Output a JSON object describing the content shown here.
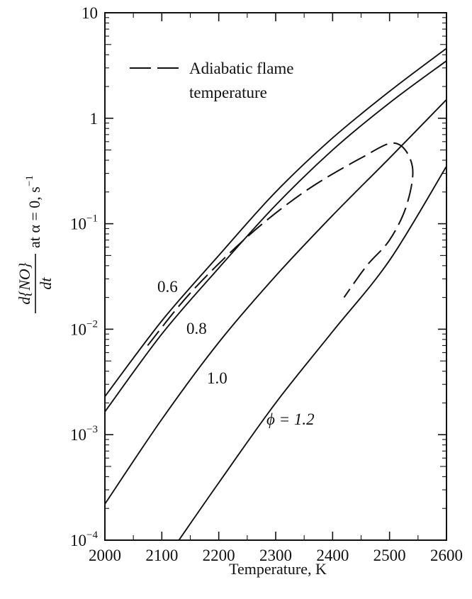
{
  "chart_data": {
    "type": "line",
    "xlabel": "Temperature, K",
    "ylabel_numerator": "d{NO}",
    "ylabel_denominator": "dt",
    "ylabel_tail": "at α = 0, s",
    "ylabel_tail_exponent": "−1",
    "x_ticks": [
      "2000",
      "2100",
      "2200",
      "2300",
      "2400",
      "2500",
      "2600"
    ],
    "y_ticks": [
      {
        "base": "10",
        "exp": "−4",
        "value": 0.0001
      },
      {
        "base": "10",
        "exp": "−3",
        "value": 0.001
      },
      {
        "base": "10",
        "exp": "−2",
        "value": 0.01
      },
      {
        "base": "10",
        "exp": "−1",
        "value": 0.1
      },
      {
        "base": "1",
        "exp": "",
        "value": 1
      },
      {
        "base": "10",
        "exp": "",
        "value": 10
      }
    ],
    "xlim": [
      2000,
      2600
    ],
    "ylim": [
      0.0001,
      10
    ],
    "yscale": "log",
    "legend": {
      "label_line1": "Adiabatic flame",
      "label_line2": "temperature",
      "placement": "top-left"
    },
    "series": [
      {
        "label": "0.6",
        "x": [
          2000,
          2100,
          2200,
          2300,
          2400,
          2500,
          2600
        ],
        "y": [
          0.0023,
          0.012,
          0.05,
          0.2,
          0.65,
          1.8,
          4.6
        ]
      },
      {
        "label": "0.8",
        "x": [
          2000,
          2100,
          2200,
          2300,
          2400,
          2500,
          2600
        ],
        "y": [
          0.00165,
          0.009,
          0.038,
          0.15,
          0.5,
          1.4,
          3.5
        ]
      },
      {
        "label": "1.0",
        "x": [
          2000,
          2100,
          2200,
          2300,
          2400,
          2500,
          2600
        ],
        "y": [
          0.00022,
          0.0014,
          0.0075,
          0.032,
          0.12,
          0.42,
          1.5
        ]
      },
      {
        "label": "ϕ = 1.2",
        "x": [
          2130,
          2200,
          2300,
          2400,
          2500,
          2600
        ],
        "y": [
          0.0001,
          0.00035,
          0.002,
          0.0095,
          0.045,
          0.35
        ]
      }
    ],
    "adiabatic_flame": {
      "x": [
        2075,
        2150,
        2250,
        2350,
        2450,
        2510,
        2540,
        2530,
        2500,
        2460,
        2420
      ],
      "y": [
        0.007,
        0.022,
        0.075,
        0.2,
        0.42,
        0.58,
        0.35,
        0.15,
        0.07,
        0.04,
        0.02
      ]
    }
  }
}
